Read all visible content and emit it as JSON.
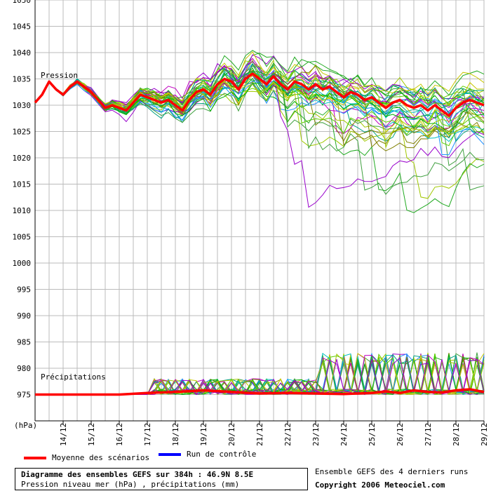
{
  "chart_data": {
    "type": "line",
    "y_ticks": [
      1050,
      1045,
      1040,
      1035,
      1030,
      1025,
      1020,
      1015,
      1010,
      1005,
      1000,
      995,
      990,
      985,
      980,
      975
    ],
    "y_unit_label": "(hPa)",
    "ylim": [
      970,
      1050
    ],
    "x_ticks": [
      "14/12",
      "15/12",
      "16/12",
      "17/12",
      "18/12",
      "19/12",
      "20/12",
      "21/12",
      "22/12",
      "23/12",
      "24/12",
      "25/12",
      "26/12",
      "27/12",
      "28/12",
      "29/12"
    ],
    "x_range_hours": [
      0,
      384
    ],
    "grid": true,
    "annotations": {
      "pressure": "Pression",
      "precip": "Précipitations"
    },
    "series": [
      {
        "name": "Moyenne des scénarios",
        "color": "#ff0000",
        "hours": [
          0,
          6,
          12,
          18,
          24,
          30,
          36,
          42,
          48,
          54,
          60,
          66,
          72,
          78,
          84,
          90,
          96,
          102,
          108,
          114,
          120,
          126,
          132,
          138,
          144,
          150,
          156,
          162,
          168,
          174,
          180,
          186,
          192,
          198,
          204,
          210,
          216,
          222,
          228,
          234,
          240,
          246,
          252,
          258,
          264,
          270,
          276,
          282,
          288,
          294,
          300,
          306,
          312,
          318,
          324,
          330,
          336,
          342,
          348,
          354,
          360,
          366,
          372,
          378,
          384
        ],
        "values": [
          1030.5,
          1032,
          1034.5,
          1033,
          1032,
          1033.5,
          1034.5,
          1033.5,
          1032.5,
          1031,
          1029.5,
          1030,
          1029.5,
          1029,
          1030.5,
          1032,
          1031.5,
          1031,
          1030.5,
          1031,
          1030,
          1029,
          1031,
          1032.5,
          1033,
          1032,
          1034,
          1035,
          1034.5,
          1033,
          1035,
          1036,
          1035,
          1034,
          1035.5,
          1034,
          1033,
          1034.5,
          1034,
          1033,
          1034,
          1033,
          1033.5,
          1032.5,
          1031.5,
          1032.5,
          1032,
          1031,
          1031.5,
          1030.5,
          1029.5,
          1030.5,
          1031,
          1030,
          1029.5,
          1030,
          1029,
          1030,
          1029,
          1028,
          1029.5,
          1030.5,
          1031,
          1030.5,
          1030
        ]
      },
      {
        "name": "Moyenne des scénarios (précipitations)",
        "color": "#ff0000",
        "hours": [
          0,
          24,
          48,
          72,
          96,
          120,
          144,
          168,
          192,
          216,
          240,
          264,
          288,
          300,
          312,
          324,
          336,
          348,
          360,
          372,
          384
        ],
        "values": [
          975,
          975,
          975,
          975,
          975.3,
          975.5,
          975.8,
          975.5,
          975.2,
          975.3,
          975.2,
          975.1,
          975.3,
          975.6,
          975.3,
          975.8,
          975.5,
          975.4,
          975.8,
          976,
          975.5
        ]
      },
      {
        "name": "Run de contrôle",
        "color": "#0000ff",
        "hours": [
          0,
          24,
          48,
          72,
          96,
          120,
          144,
          168,
          192,
          216,
          240,
          264,
          288,
          312,
          336,
          360,
          384
        ],
        "values": [
          1031,
          1034,
          1035,
          1033,
          1030,
          1032,
          1028,
          1030,
          1032,
          1035,
          1033,
          1031,
          1030,
          1029,
          1032,
          1030,
          1028
        ]
      }
    ]
  },
  "legend": {
    "mean_label": "Moyenne des scénarios",
    "mean_color": "#ff0000",
    "control_label": "Run de contrôle",
    "control_color": "#0000ff"
  },
  "info": {
    "title": "Diagramme des ensembles GEFS sur 384h : 46.9N 8.5E",
    "subtitle": "Pression niveau mer (hPa) , précipitations (mm)"
  },
  "runs_note": "Ensemble GEFS des 4 derniers runs",
  "copyright": "Copyright 2006 Meteociel.com",
  "ensemble_colors": [
    "#22aa22",
    "#00b000",
    "#a0c800",
    "#c8c800",
    "#c000c0",
    "#9900cc",
    "#00c0c0",
    "#1e90ff",
    "#40a040",
    "#808000",
    "#5fd000",
    "#00a080"
  ]
}
